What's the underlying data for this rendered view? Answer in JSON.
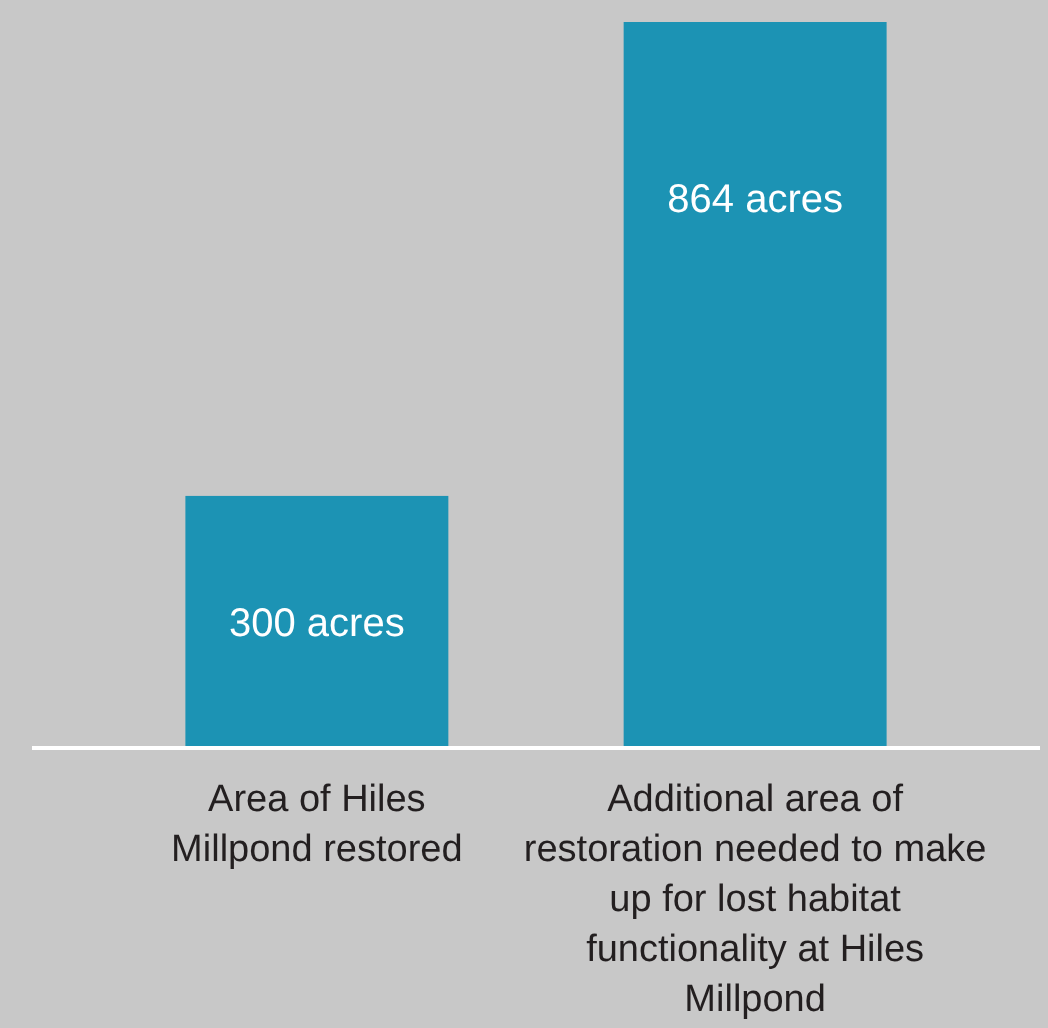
{
  "chart_data": {
    "type": "bar",
    "categories": [
      "Area of Hiles Millpond restored",
      "Additional area of restoration needed to make up for lost habitat functionality at Hiles Millpond"
    ],
    "values": [
      300,
      864
    ],
    "value_labels": [
      "300 acres",
      "864 acres"
    ],
    "color": "#1c93b4"
  }
}
